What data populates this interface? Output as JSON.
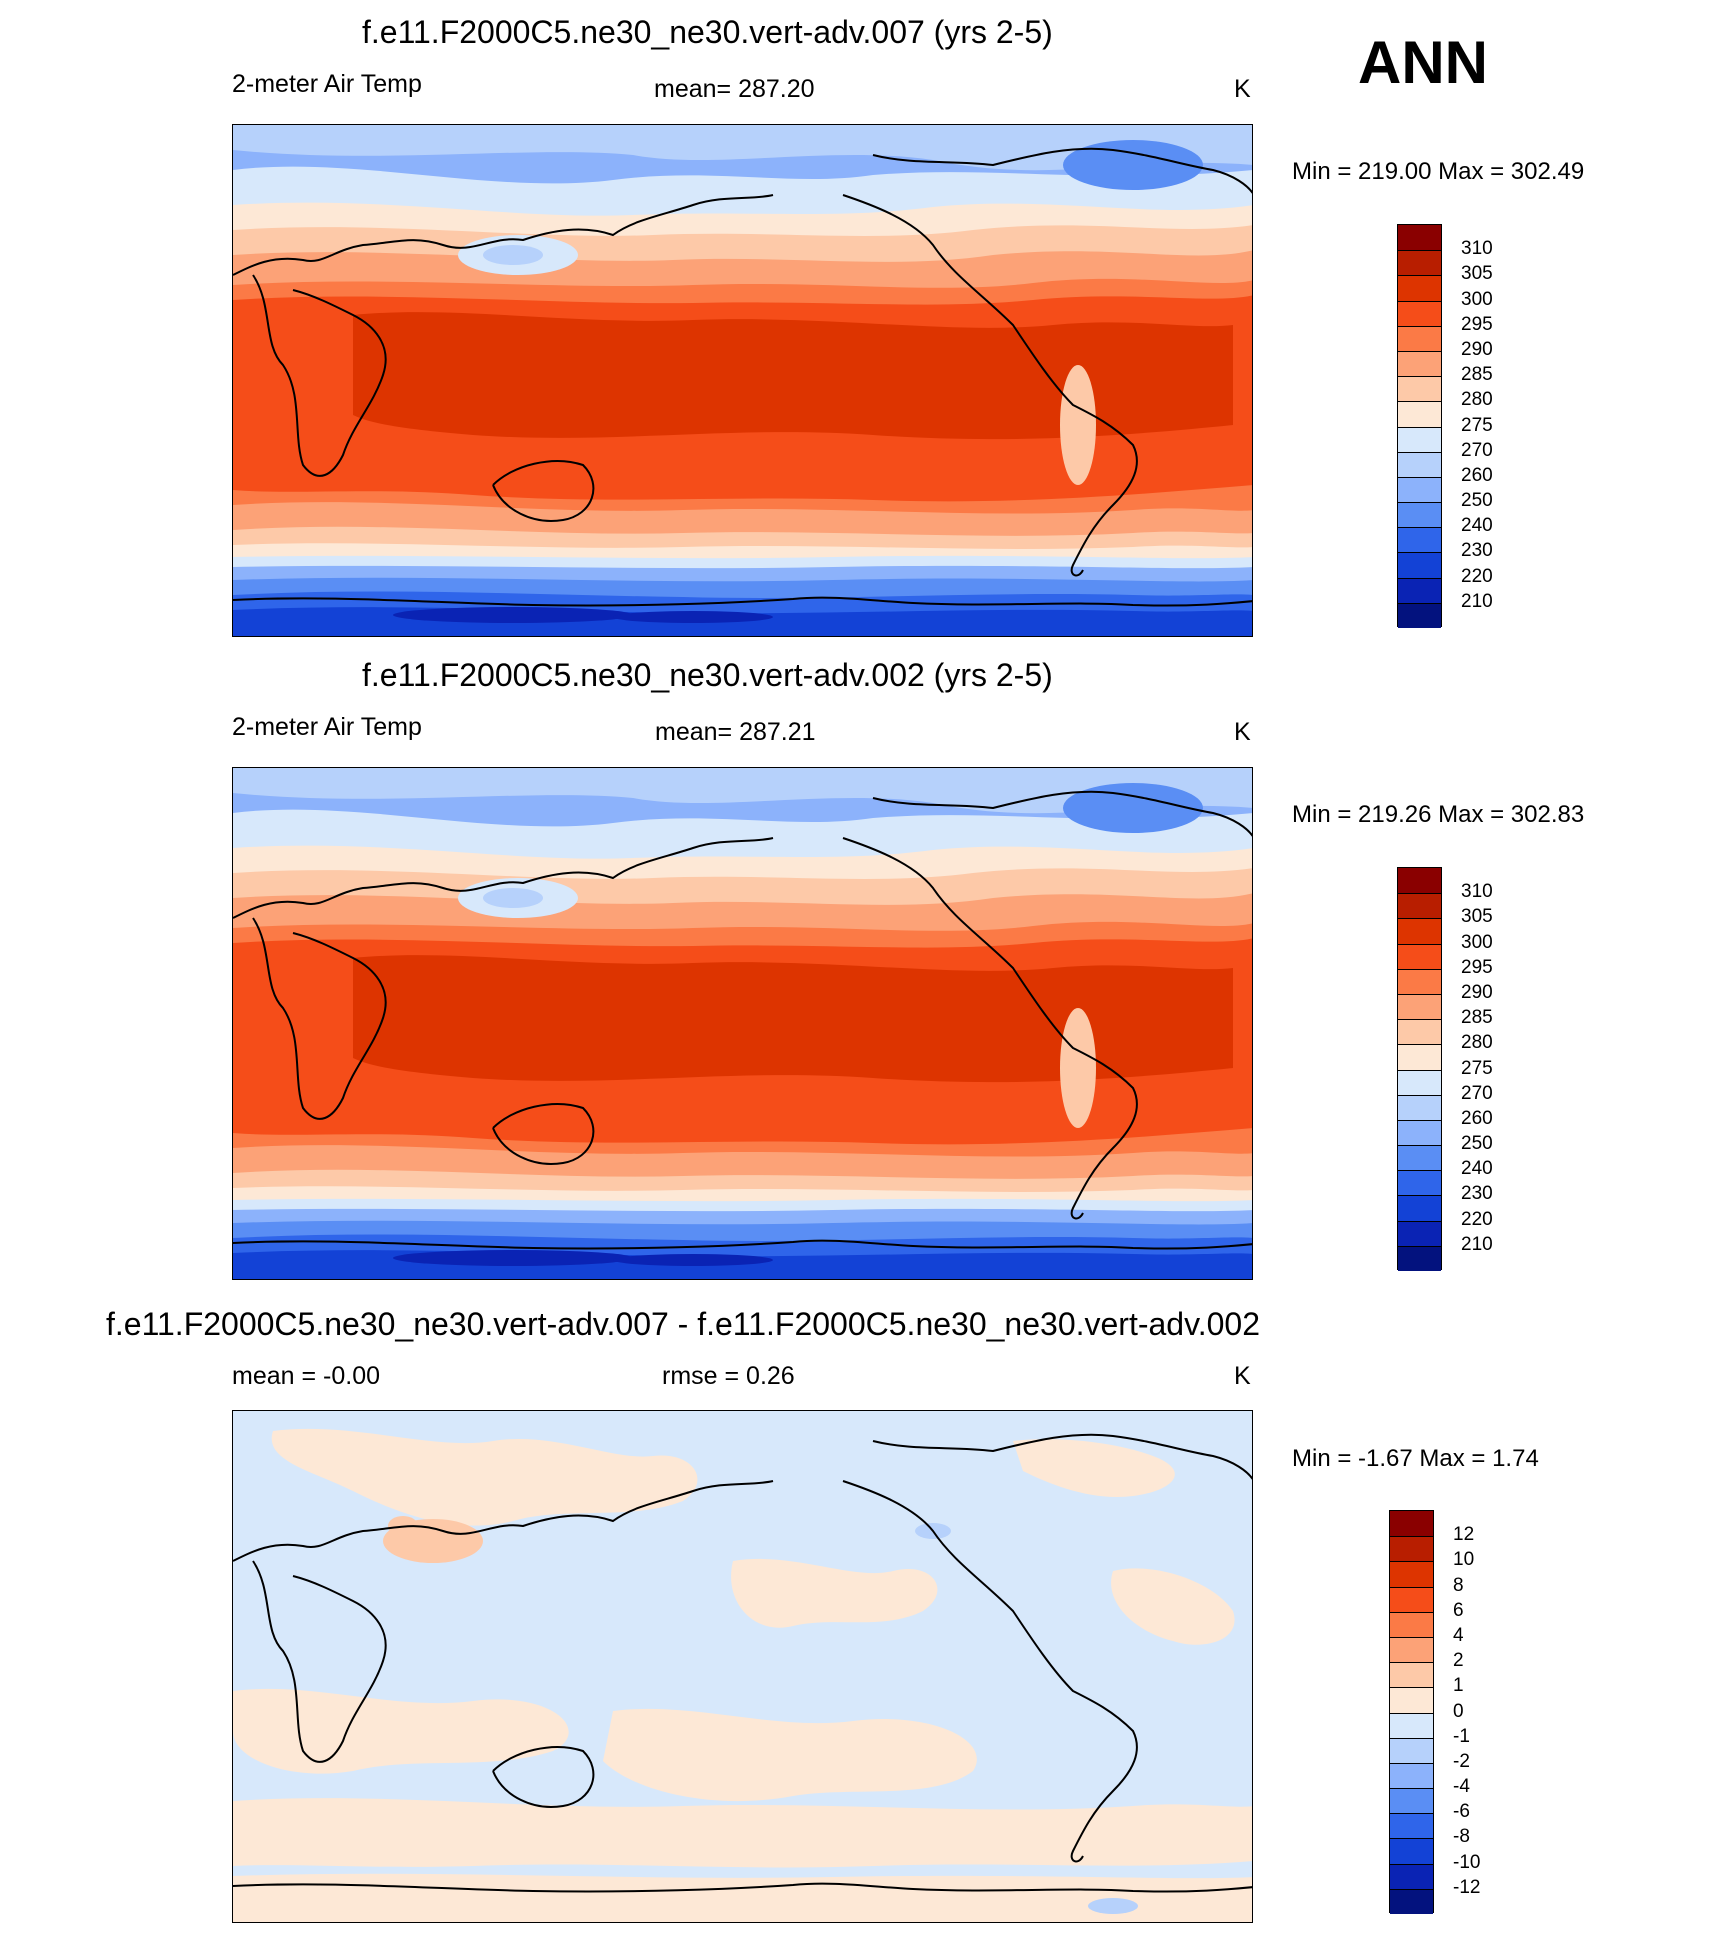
{
  "season": "ANN",
  "panels": [
    {
      "title": "f.e11.F2000C5.ne30_ne30.vert-adv.007 (yrs 2-5)",
      "left_label": "2-meter Air Temp",
      "center_label": "mean= 287.20",
      "units": "K",
      "minmax": "Min = 219.00 Max = 302.49",
      "colorbar": {
        "labels": [
          "310",
          "305",
          "300",
          "295",
          "290",
          "285",
          "280",
          "275",
          "270",
          "260",
          "250",
          "240",
          "230",
          "220",
          "210"
        ],
        "colors": [
          "#8a0000",
          "#b81e00",
          "#dd3400",
          "#f54d19",
          "#fb7a46",
          "#fca277",
          "#fdc9a8",
          "#fde8d6",
          "#d7e8fb",
          "#b6d1fb",
          "#8cb2fb",
          "#5a8ef4",
          "#2f65ea",
          "#1342d6",
          "#0a23b4",
          "#03127e"
        ]
      }
    },
    {
      "title": "f.e11.F2000C5.ne30_ne30.vert-adv.002 (yrs 2-5)",
      "left_label": "2-meter Air Temp",
      "center_label": "mean= 287.21",
      "units": "K",
      "minmax": "Min = 219.26 Max = 302.83",
      "colorbar": {
        "labels": [
          "310",
          "305",
          "300",
          "295",
          "290",
          "285",
          "280",
          "275",
          "270",
          "260",
          "250",
          "240",
          "230",
          "220",
          "210"
        ],
        "colors": [
          "#8a0000",
          "#b81e00",
          "#dd3400",
          "#f54d19",
          "#fb7a46",
          "#fca277",
          "#fdc9a8",
          "#fde8d6",
          "#d7e8fb",
          "#b6d1fb",
          "#8cb2fb",
          "#5a8ef4",
          "#2f65ea",
          "#1342d6",
          "#0a23b4",
          "#03127e"
        ]
      }
    },
    {
      "title": "f.e11.F2000C5.ne30_ne30.vert-adv.007 - f.e11.F2000C5.ne30_ne30.vert-adv.002",
      "left_label": "mean =  -0.00",
      "center_label": "rmse =   0.26",
      "units": "K",
      "minmax": "Min =  -1.67 Max =   1.74",
      "colorbar": {
        "labels": [
          "12",
          "10",
          "8",
          "6",
          "4",
          "2",
          "1",
          "0",
          "-1",
          "-2",
          "-4",
          "-6",
          "-8",
          "-10",
          "-12"
        ],
        "colors": [
          "#8a0000",
          "#b81e00",
          "#dd3400",
          "#f54d19",
          "#fb7a46",
          "#fca277",
          "#fdc9a8",
          "#fde8d6",
          "#d7e8fb",
          "#b6d1fb",
          "#8cb2fb",
          "#5a8ef4",
          "#2f65ea",
          "#1342d6",
          "#0a23b4",
          "#03127e"
        ]
      }
    }
  ]
}
